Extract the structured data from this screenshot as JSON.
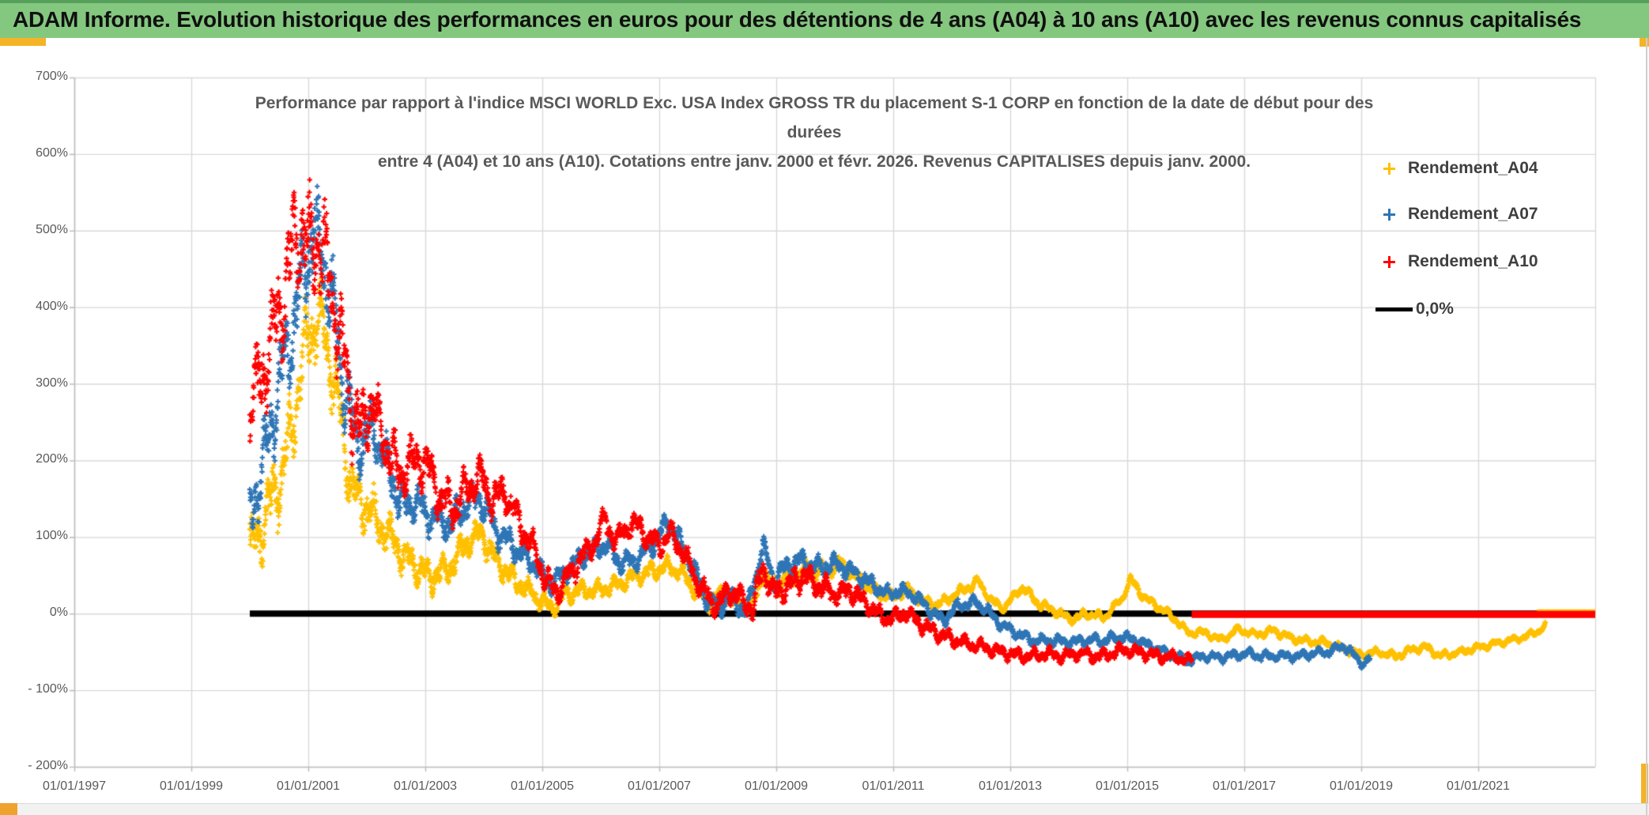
{
  "header": {
    "text": "ADAM Informe. Evolution historique des performances en euros pour des détentions de 4 ans (A04) à 10 ans (A10) avec les revenus connus capitalisés",
    "bg": "#84C77F",
    "top_border": "#57A05B",
    "text_color": "#101010"
  },
  "chrome": {
    "accent_yellow": "#F5B326",
    "accent_orange": "#F0A22E",
    "bottom_strip_bg": "#F2F2F2",
    "window_border": "#CFCFCF"
  },
  "chart_data": {
    "type": "scatter",
    "title_lines": [
      "Performance par rapport à l'indice MSCI WORLD Exc. USA Index GROSS TR  du placement S-1 CORP en fonction de la date de début pour des",
      "durées",
      "entre 4 (A04) et 10 ans (A10). Cotations entre janv. 2000 et févr. 2026. Revenus CAPITALISES depuis janv. 2000."
    ],
    "legend_position": "right",
    "grid": true,
    "colors": {
      "grid": "#D9D9D9",
      "axis": "#BFBFBF",
      "tick_text": "#595959",
      "title_text": "#595959",
      "legend_text": "#3F3F3F"
    },
    "x_axis": {
      "min_year": 1997,
      "max_year": 2023,
      "tick_step_years": 2,
      "tick_labels": [
        "01/01/1997",
        "01/01/1999",
        "01/01/2001",
        "01/01/2003",
        "01/01/2005",
        "01/01/2007",
        "01/01/2009",
        "01/01/2011",
        "01/01/2013",
        "01/01/2015",
        "01/01/2017",
        "01/01/2019",
        "01/01/2021"
      ]
    },
    "y_axis": {
      "min": -200,
      "max": 700,
      "step": 100,
      "tick_labels": [
        "700%",
        "600%",
        "500%",
        "400%",
        "300%",
        "200%",
        "100%",
        "0%",
        "- 100%",
        "- 200%"
      ]
    },
    "zero_line": {
      "label": "0,0%",
      "color": "#000000",
      "value": 0,
      "from": 2000.0,
      "to": 2023.0
    },
    "band_profile": [
      [
        1999.9,
        40
      ],
      [
        2000.5,
        55
      ],
      [
        2001.2,
        60
      ],
      [
        2001.8,
        42
      ],
      [
        2002.4,
        30
      ],
      [
        2003.2,
        24
      ],
      [
        2004.2,
        20
      ],
      [
        2005.0,
        14
      ],
      [
        2006.0,
        13
      ],
      [
        2007.0,
        13
      ],
      [
        2008.5,
        13
      ],
      [
        2009.0,
        15
      ],
      [
        2010.0,
        12
      ],
      [
        2011.0,
        9
      ],
      [
        2012.0,
        8
      ],
      [
        2013.0,
        7
      ],
      [
        2014.5,
        7
      ],
      [
        2016.0,
        6
      ],
      [
        2018.0,
        6
      ],
      [
        2020.0,
        6
      ],
      [
        2022.2,
        5
      ]
    ],
    "series": [
      {
        "name": "Rendement_A04",
        "color": "#FFC000",
        "marker": "plus",
        "start": 2000.0,
        "end": 2022.15,
        "band_scale": 0.9,
        "flat_zero": {
          "from": 2022.0,
          "to": 2023.0
        },
        "anchors": [
          [
            2000.0,
            80
          ],
          [
            2000.3,
            130
          ],
          [
            2000.6,
            195
          ],
          [
            2000.8,
            280
          ],
          [
            2001.0,
            370
          ],
          [
            2001.2,
            380
          ],
          [
            2001.35,
            340
          ],
          [
            2001.5,
            280
          ],
          [
            2001.65,
            205
          ],
          [
            2001.8,
            150
          ],
          [
            2002.0,
            140
          ],
          [
            2002.3,
            110
          ],
          [
            2002.6,
            80
          ],
          [
            2002.9,
            60
          ],
          [
            2003.1,
            48
          ],
          [
            2003.4,
            60
          ],
          [
            2003.7,
            92
          ],
          [
            2003.95,
            105
          ],
          [
            2004.2,
            70
          ],
          [
            2004.5,
            45
          ],
          [
            2004.8,
            28
          ],
          [
            2005.0,
            15
          ],
          [
            2005.15,
            8
          ],
          [
            2005.4,
            25
          ],
          [
            2005.7,
            30
          ],
          [
            2006.0,
            30
          ],
          [
            2006.3,
            38
          ],
          [
            2006.6,
            50
          ],
          [
            2006.9,
            55
          ],
          [
            2007.1,
            62
          ],
          [
            2007.35,
            55
          ],
          [
            2007.6,
            32
          ],
          [
            2007.85,
            15
          ],
          [
            2008.1,
            25
          ],
          [
            2008.4,
            12
          ],
          [
            2008.6,
            8
          ],
          [
            2008.77,
            55
          ],
          [
            2008.9,
            35
          ],
          [
            2009.2,
            45
          ],
          [
            2009.5,
            55
          ],
          [
            2009.8,
            55
          ],
          [
            2010.1,
            65
          ],
          [
            2010.4,
            45
          ],
          [
            2010.7,
            28
          ],
          [
            2011.0,
            22
          ],
          [
            2011.25,
            32
          ],
          [
            2011.5,
            15
          ],
          [
            2011.8,
            12
          ],
          [
            2012.0,
            22
          ],
          [
            2012.45,
            42
          ],
          [
            2012.7,
            15
          ],
          [
            2012.9,
            8
          ],
          [
            2013.2,
            35
          ],
          [
            2013.5,
            12
          ],
          [
            2013.8,
            2
          ],
          [
            2014.05,
            -8
          ],
          [
            2014.3,
            0
          ],
          [
            2014.6,
            -5
          ],
          [
            2014.9,
            18
          ],
          [
            2015.05,
            45
          ],
          [
            2015.3,
            20
          ],
          [
            2015.55,
            8
          ],
          [
            2015.8,
            -6
          ],
          [
            2016.05,
            -25
          ],
          [
            2016.35,
            -25
          ],
          [
            2016.6,
            -35
          ],
          [
            2016.9,
            -20
          ],
          [
            2017.2,
            -28
          ],
          [
            2017.5,
            -22
          ],
          [
            2017.8,
            -32
          ],
          [
            2018.1,
            -36
          ],
          [
            2018.4,
            -38
          ],
          [
            2018.7,
            -46
          ],
          [
            2019.0,
            -54
          ],
          [
            2019.3,
            -50
          ],
          [
            2019.6,
            -56
          ],
          [
            2019.9,
            -46
          ],
          [
            2020.1,
            -44
          ],
          [
            2020.35,
            -55
          ],
          [
            2020.6,
            -52
          ],
          [
            2020.9,
            -46
          ],
          [
            2021.2,
            -41
          ],
          [
            2021.5,
            -36
          ],
          [
            2021.8,
            -30
          ],
          [
            2022.0,
            -24
          ],
          [
            2022.15,
            -16
          ]
        ]
      },
      {
        "name": "Rendement_A07",
        "color": "#2E75B6",
        "marker": "plus",
        "start": 2000.0,
        "end": 2019.15,
        "band_scale": 1.05,
        "flat_zero": null,
        "anchors": [
          [
            2000.0,
            135
          ],
          [
            2000.2,
            180
          ],
          [
            2000.45,
            280
          ],
          [
            2000.7,
            360
          ],
          [
            2000.9,
            430
          ],
          [
            2001.1,
            500
          ],
          [
            2001.3,
            450
          ],
          [
            2001.45,
            390
          ],
          [
            2001.6,
            300
          ],
          [
            2001.75,
            250
          ],
          [
            2001.9,
            220
          ],
          [
            2002.1,
            240
          ],
          [
            2002.35,
            195
          ],
          [
            2002.6,
            140
          ],
          [
            2002.8,
            150
          ],
          [
            2003.0,
            132
          ],
          [
            2003.2,
            120
          ],
          [
            2003.45,
            118
          ],
          [
            2003.7,
            145
          ],
          [
            2003.95,
            150
          ],
          [
            2004.2,
            110
          ],
          [
            2004.5,
            88
          ],
          [
            2004.8,
            68
          ],
          [
            2005.0,
            52
          ],
          [
            2005.15,
            38
          ],
          [
            2005.4,
            55
          ],
          [
            2005.7,
            75
          ],
          [
            2005.95,
            85
          ],
          [
            2006.1,
            90
          ],
          [
            2006.35,
            65
          ],
          [
            2006.6,
            70
          ],
          [
            2006.9,
            92
          ],
          [
            2007.15,
            120
          ],
          [
            2007.35,
            95
          ],
          [
            2007.6,
            55
          ],
          [
            2007.8,
            22
          ],
          [
            2008.0,
            6
          ],
          [
            2008.2,
            22
          ],
          [
            2008.5,
            2
          ],
          [
            2008.77,
            88
          ],
          [
            2008.95,
            42
          ],
          [
            2009.1,
            55
          ],
          [
            2009.4,
            70
          ],
          [
            2009.7,
            60
          ],
          [
            2010.0,
            65
          ],
          [
            2010.3,
            55
          ],
          [
            2010.6,
            40
          ],
          [
            2010.9,
            26
          ],
          [
            2011.1,
            30
          ],
          [
            2011.35,
            24
          ],
          [
            2011.6,
            6
          ],
          [
            2011.85,
            -10
          ],
          [
            2012.1,
            10
          ],
          [
            2012.4,
            15
          ],
          [
            2012.6,
            5
          ],
          [
            2012.85,
            -15
          ],
          [
            2013.1,
            -25
          ],
          [
            2013.4,
            -35
          ],
          [
            2013.7,
            -35
          ],
          [
            2014.0,
            -38
          ],
          [
            2014.3,
            -35
          ],
          [
            2014.6,
            -35
          ],
          [
            2014.9,
            -30
          ],
          [
            2015.2,
            -36
          ],
          [
            2015.5,
            -46
          ],
          [
            2015.8,
            -56
          ],
          [
            2016.05,
            -62
          ],
          [
            2016.3,
            -55
          ],
          [
            2016.55,
            -58
          ],
          [
            2016.8,
            -55
          ],
          [
            2017.05,
            -52
          ],
          [
            2017.3,
            -56
          ],
          [
            2017.6,
            -55
          ],
          [
            2017.9,
            -56
          ],
          [
            2018.2,
            -52
          ],
          [
            2018.45,
            -50
          ],
          [
            2018.7,
            -42
          ],
          [
            2018.9,
            -56
          ],
          [
            2019.05,
            -66
          ],
          [
            2019.15,
            -58
          ]
        ]
      },
      {
        "name": "Rendement_A10",
        "color": "#FF0000",
        "marker": "plus",
        "start": 2000.0,
        "end": 2016.1,
        "band_scale": 1.25,
        "flat_zero": {
          "from": 2016.1,
          "to": 2023.0
        },
        "anchors": [
          [
            2000.0,
            260
          ],
          [
            2000.25,
            320
          ],
          [
            2000.5,
            390
          ],
          [
            2000.7,
            460
          ],
          [
            2000.85,
            510
          ],
          [
            2001.0,
            470
          ],
          [
            2001.15,
            490
          ],
          [
            2001.3,
            450
          ],
          [
            2001.45,
            400
          ],
          [
            2001.6,
            330
          ],
          [
            2001.75,
            265
          ],
          [
            2001.9,
            235
          ],
          [
            2002.05,
            280
          ],
          [
            2002.3,
            230
          ],
          [
            2002.55,
            180
          ],
          [
            2002.8,
            200
          ],
          [
            2003.0,
            200
          ],
          [
            2003.25,
            150
          ],
          [
            2003.5,
            138
          ],
          [
            2003.75,
            168
          ],
          [
            2003.95,
            178
          ],
          [
            2004.15,
            150
          ],
          [
            2004.35,
            160
          ],
          [
            2004.6,
            120
          ],
          [
            2004.85,
            85
          ],
          [
            2005.05,
            45
          ],
          [
            2005.25,
            28
          ],
          [
            2005.5,
            55
          ],
          [
            2005.75,
            80
          ],
          [
            2005.95,
            100
          ],
          [
            2006.07,
            125
          ],
          [
            2006.25,
            95
          ],
          [
            2006.45,
            112
          ],
          [
            2006.65,
            115
          ],
          [
            2006.85,
            95
          ],
          [
            2007.05,
            92
          ],
          [
            2007.2,
            105
          ],
          [
            2007.4,
            80
          ],
          [
            2007.6,
            50
          ],
          [
            2007.8,
            25
          ],
          [
            2008.0,
            12
          ],
          [
            2008.2,
            30
          ],
          [
            2008.45,
            15
          ],
          [
            2008.6,
            6
          ],
          [
            2008.77,
            62
          ],
          [
            2008.95,
            26
          ],
          [
            2009.2,
            36
          ],
          [
            2009.45,
            50
          ],
          [
            2009.7,
            38
          ],
          [
            2010.0,
            26
          ],
          [
            2010.3,
            30
          ],
          [
            2010.55,
            12
          ],
          [
            2010.8,
            -4
          ],
          [
            2011.05,
            -6
          ],
          [
            2011.2,
            2
          ],
          [
            2011.4,
            -10
          ],
          [
            2011.6,
            -20
          ],
          [
            2011.9,
            -30
          ],
          [
            2012.2,
            -38
          ],
          [
            2012.5,
            -43
          ],
          [
            2012.8,
            -50
          ],
          [
            2013.0,
            -52
          ],
          [
            2013.3,
            -56
          ],
          [
            2013.6,
            -52
          ],
          [
            2013.9,
            -56
          ],
          [
            2014.2,
            -52
          ],
          [
            2014.5,
            -56
          ],
          [
            2014.8,
            -50
          ],
          [
            2015.0,
            -48
          ],
          [
            2015.3,
            -52
          ],
          [
            2015.6,
            -56
          ],
          [
            2015.9,
            -58
          ],
          [
            2016.1,
            -62
          ]
        ]
      }
    ]
  }
}
